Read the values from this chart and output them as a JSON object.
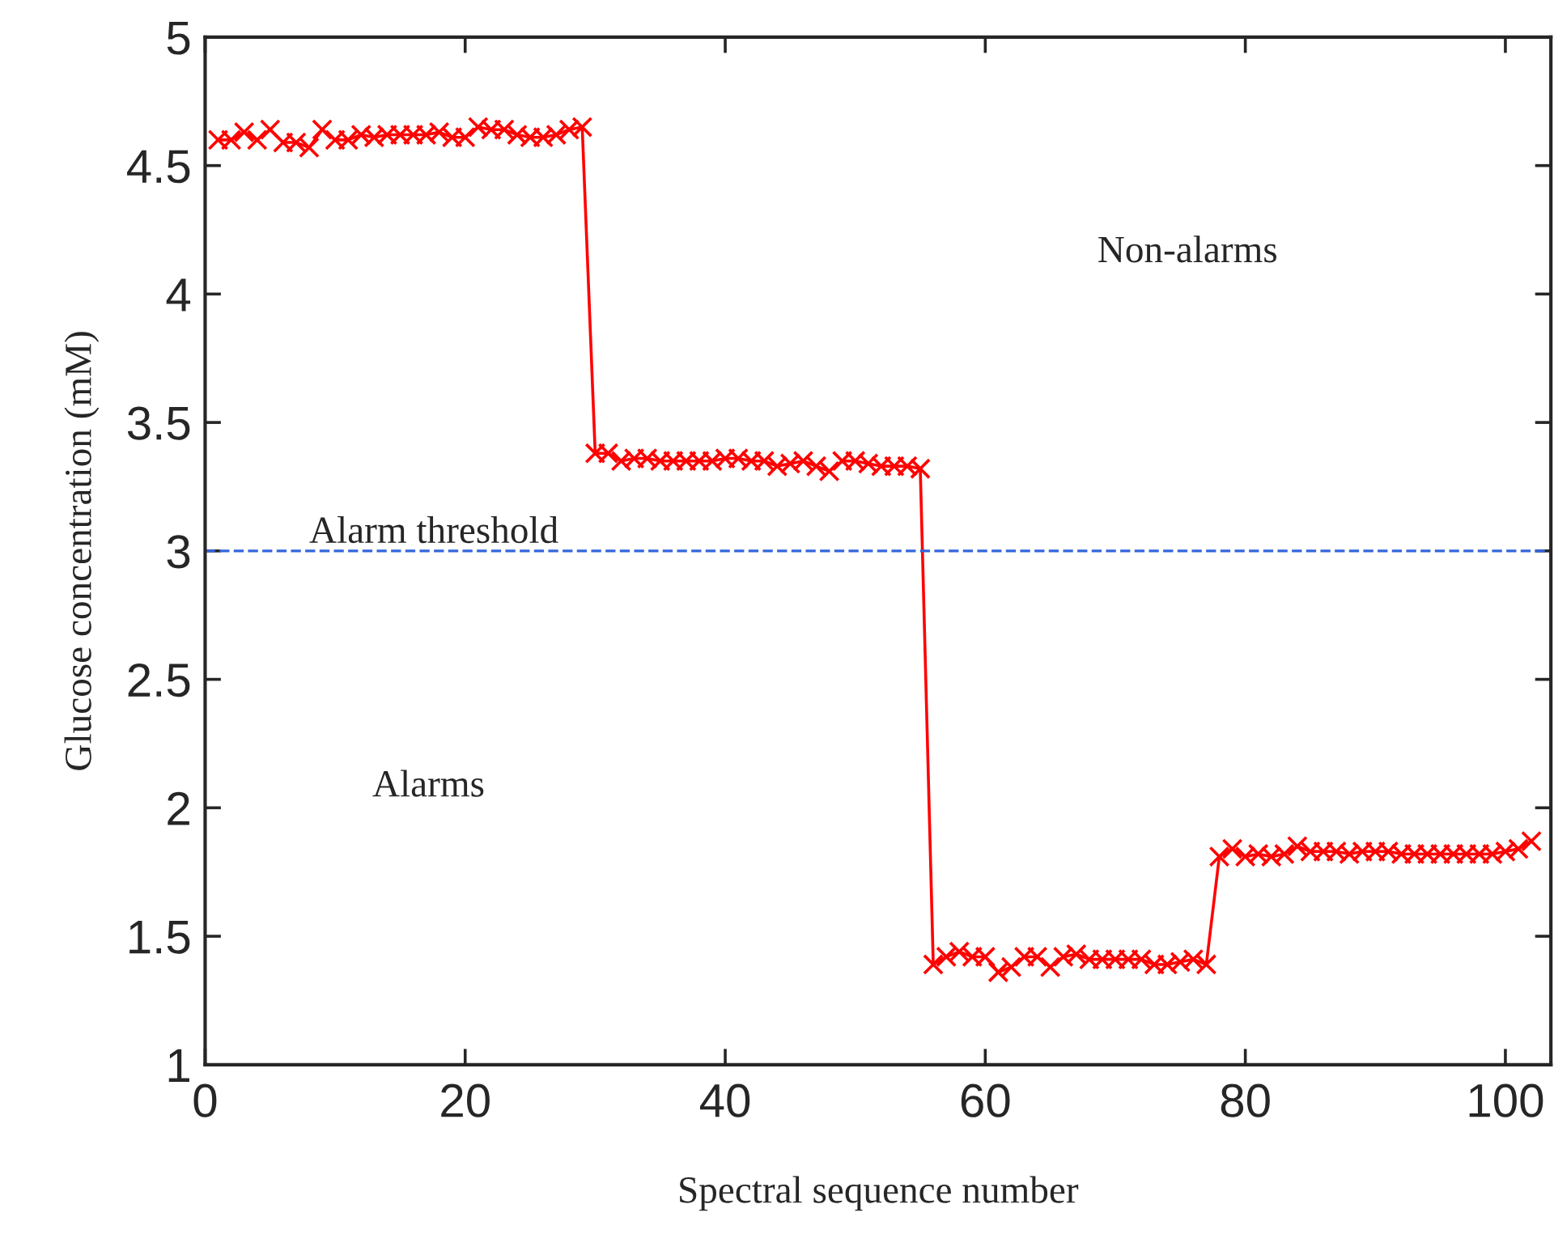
{
  "chart_data": {
    "type": "line",
    "xlabel": "Spectral sequence number",
    "ylabel": "Glucose concentration (mM)",
    "x": [
      1,
      2,
      3,
      4,
      5,
      6,
      7,
      8,
      9,
      10,
      11,
      12,
      13,
      14,
      15,
      16,
      17,
      18,
      19,
      20,
      21,
      22,
      23,
      24,
      25,
      26,
      27,
      28,
      29,
      30,
      31,
      32,
      33,
      34,
      35,
      36,
      37,
      38,
      39,
      40,
      41,
      42,
      43,
      44,
      45,
      46,
      47,
      48,
      49,
      50,
      51,
      52,
      53,
      54,
      55,
      56,
      57,
      58,
      59,
      60,
      61,
      62,
      63,
      64,
      65,
      66,
      67,
      68,
      69,
      70,
      71,
      72,
      73,
      74,
      75,
      76,
      77,
      78,
      79,
      80,
      81,
      82,
      83,
      84,
      85,
      86,
      87,
      88,
      89,
      90,
      91,
      92,
      93,
      94,
      95,
      96,
      97,
      98,
      99,
      100,
      101,
      102
    ],
    "series": [
      {
        "color": "#ff0000",
        "values": [
          4.6,
          4.6,
          4.63,
          4.6,
          4.64,
          4.59,
          4.59,
          4.57,
          4.64,
          4.6,
          4.6,
          4.62,
          4.61,
          4.62,
          4.62,
          4.62,
          4.62,
          4.63,
          4.61,
          4.61,
          4.65,
          4.64,
          4.64,
          4.62,
          4.61,
          4.61,
          4.62,
          4.64,
          4.65,
          3.38,
          3.38,
          3.35,
          3.36,
          3.36,
          3.35,
          3.35,
          3.35,
          3.35,
          3.35,
          3.36,
          3.36,
          3.35,
          3.35,
          3.33,
          3.34,
          3.35,
          3.33,
          3.31,
          3.35,
          3.35,
          3.34,
          3.33,
          3.33,
          3.33,
          3.32,
          1.39,
          1.42,
          1.44,
          1.42,
          1.42,
          1.36,
          1.38,
          1.42,
          1.42,
          1.38,
          1.42,
          1.43,
          1.41,
          1.41,
          1.41,
          1.41,
          1.41,
          1.39,
          1.39,
          1.4,
          1.41,
          1.39,
          1.81,
          1.84,
          1.81,
          1.82,
          1.81,
          1.82,
          1.85,
          1.83,
          1.83,
          1.83,
          1.82,
          1.83,
          1.83,
          1.83,
          1.82,
          1.82,
          1.82,
          1.82,
          1.82,
          1.82,
          1.82,
          1.82,
          1.83,
          1.84,
          1.87
        ]
      }
    ],
    "ref_lines": [
      {
        "axis": "y",
        "value": 3,
        "label": "Alarm threshold",
        "color": "#3366dd",
        "line_style": "dashed"
      }
    ],
    "annotations": [
      "Non-alarms",
      "Alarms"
    ],
    "xlim": [
      0,
      103.5
    ],
    "xticks": [
      0,
      20,
      40,
      60,
      80,
      100
    ],
    "ylim": [
      1,
      5
    ],
    "yticks": [
      1,
      1.5,
      2,
      2.5,
      3,
      3.5,
      4,
      4.5,
      5
    ],
    "marker": "cross",
    "line_style": "solid",
    "grid": false,
    "legend": false
  }
}
